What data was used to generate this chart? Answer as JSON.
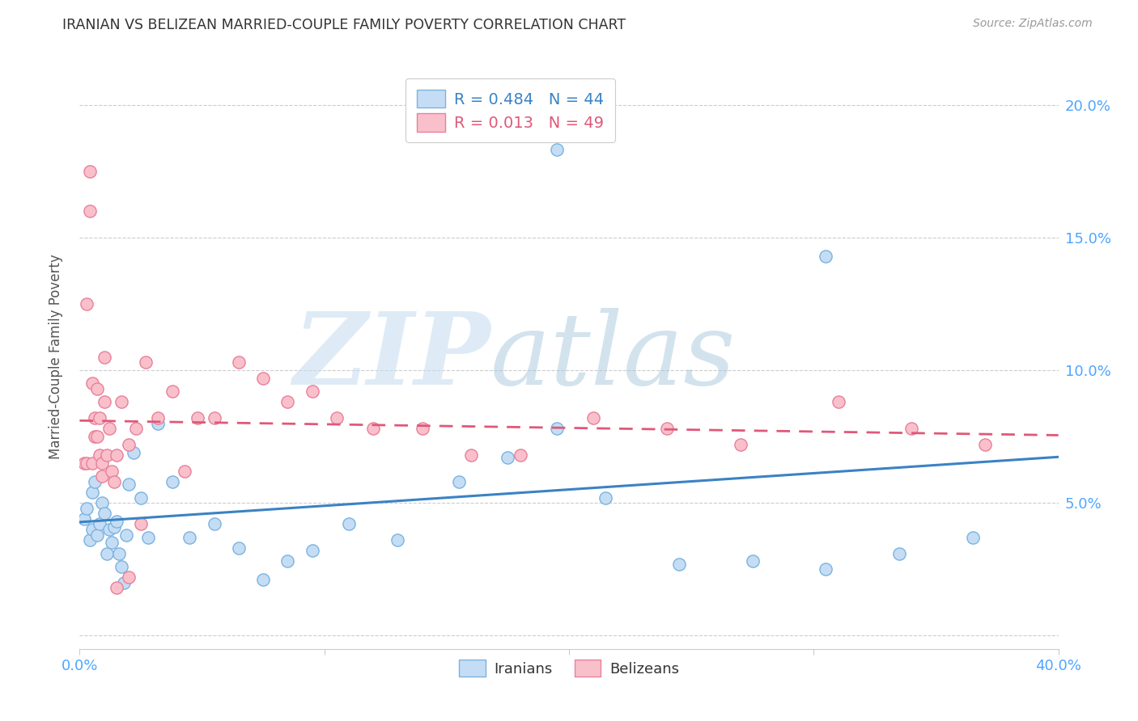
{
  "title": "IRANIAN VS BELIZEAN MARRIED-COUPLE FAMILY POVERTY CORRELATION CHART",
  "source": "Source: ZipAtlas.com",
  "ylabel": "Married-Couple Family Poverty",
  "xlim": [
    0.0,
    0.4
  ],
  "ylim": [
    -0.005,
    0.215
  ],
  "xticks": [
    0.0,
    0.1,
    0.2,
    0.3,
    0.4
  ],
  "xticklabels": [
    "0.0%",
    "",
    "",
    "",
    "40.0%"
  ],
  "yticks": [
    0.0,
    0.05,
    0.1,
    0.15,
    0.2
  ],
  "yticklabels": [
    "",
    "5.0%",
    "10.0%",
    "15.0%",
    "20.0%"
  ],
  "iranian_color": "#c5ddf4",
  "iranian_edge_color": "#7ab3e0",
  "belizean_color": "#f9c0cb",
  "belizean_edge_color": "#e8809a",
  "iranian_line_color": "#3b82c4",
  "belizean_line_color": "#e05878",
  "iranian_R": 0.484,
  "iranian_N": 44,
  "belizean_R": 0.013,
  "belizean_N": 49,
  "legend_iranians": "Iranians",
  "legend_belizeans": "Belizeans",
  "tick_color": "#4da6ff",
  "iranians_x": [
    0.002,
    0.003,
    0.004,
    0.005,
    0.005,
    0.006,
    0.007,
    0.008,
    0.009,
    0.01,
    0.011,
    0.012,
    0.013,
    0.014,
    0.015,
    0.016,
    0.017,
    0.018,
    0.019,
    0.02,
    0.022,
    0.025,
    0.028,
    0.032,
    0.038,
    0.045,
    0.055,
    0.065,
    0.075,
    0.085,
    0.095,
    0.11,
    0.13,
    0.155,
    0.175,
    0.195,
    0.215,
    0.245,
    0.275,
    0.305,
    0.335,
    0.365,
    0.195,
    0.305
  ],
  "iranians_y": [
    0.044,
    0.048,
    0.036,
    0.054,
    0.04,
    0.058,
    0.038,
    0.042,
    0.05,
    0.046,
    0.031,
    0.04,
    0.035,
    0.041,
    0.043,
    0.031,
    0.026,
    0.02,
    0.038,
    0.057,
    0.069,
    0.052,
    0.037,
    0.08,
    0.058,
    0.037,
    0.042,
    0.033,
    0.021,
    0.028,
    0.032,
    0.042,
    0.036,
    0.058,
    0.067,
    0.183,
    0.052,
    0.027,
    0.028,
    0.025,
    0.031,
    0.037,
    0.078,
    0.143
  ],
  "belizeans_x": [
    0.002,
    0.003,
    0.003,
    0.004,
    0.004,
    0.005,
    0.005,
    0.006,
    0.006,
    0.007,
    0.007,
    0.008,
    0.008,
    0.009,
    0.009,
    0.01,
    0.01,
    0.011,
    0.012,
    0.013,
    0.014,
    0.015,
    0.017,
    0.02,
    0.023,
    0.027,
    0.032,
    0.038,
    0.043,
    0.048,
    0.055,
    0.065,
    0.075,
    0.085,
    0.095,
    0.105,
    0.12,
    0.14,
    0.16,
    0.18,
    0.21,
    0.24,
    0.27,
    0.31,
    0.34,
    0.37,
    0.02,
    0.015,
    0.025
  ],
  "belizeans_y": [
    0.065,
    0.125,
    0.065,
    0.175,
    0.16,
    0.095,
    0.065,
    0.075,
    0.082,
    0.093,
    0.075,
    0.082,
    0.068,
    0.06,
    0.065,
    0.088,
    0.105,
    0.068,
    0.078,
    0.062,
    0.058,
    0.068,
    0.088,
    0.072,
    0.078,
    0.103,
    0.082,
    0.092,
    0.062,
    0.082,
    0.082,
    0.103,
    0.097,
    0.088,
    0.092,
    0.082,
    0.078,
    0.078,
    0.068,
    0.068,
    0.082,
    0.078,
    0.072,
    0.088,
    0.078,
    0.072,
    0.022,
    0.018,
    0.042
  ]
}
